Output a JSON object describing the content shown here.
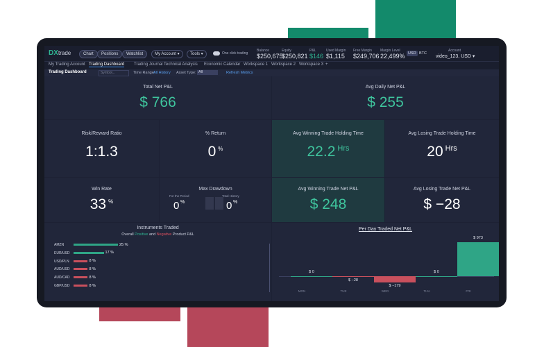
{
  "header": {
    "logo": "DX",
    "logo_suffix": "trade",
    "buttons": [
      "Chart",
      "Positions",
      "Watchlist"
    ],
    "menus": [
      "My Account ▾",
      "Tools ▾"
    ],
    "toggle": "One click trading",
    "stats": [
      {
        "label": "Balance",
        "value": "$250,675"
      },
      {
        "label": "Equity",
        "value": "$250,821"
      },
      {
        "label": "P&L",
        "value": "$146"
      },
      {
        "label": "Used Margin",
        "value": "$1,115"
      },
      {
        "label": "Free Margin",
        "value": "$249,706"
      },
      {
        "label": "Margin Level",
        "value": "22,499%"
      }
    ],
    "currencies": [
      "USD",
      "BTC"
    ],
    "account_label": "Account",
    "account_value": "video_123, USD ▾"
  },
  "tabs": [
    "My Trading Account",
    "Trading Dashboard",
    "Trading Journal",
    "Technical Analysis",
    "Economic Calendar",
    "Workspace 1",
    "Workspace 2",
    "Workspace 3",
    "+"
  ],
  "toolbar": {
    "title": "Trading Dashboard",
    "symbol_placeholder": "Symbol...",
    "time_range_label": "Time Range:",
    "time_range_value": "All History",
    "asset_type_label": "Asset Type:",
    "asset_type_value": "All",
    "refresh": "Refresh Metrics"
  },
  "cards": [
    {
      "title": "Total Net P&L",
      "value": "$ 766"
    },
    {
      "title": "Avg Daily Net P&L",
      "value": "$ 255"
    },
    {
      "title": "Risk/Reward Ratio",
      "value": "1:1.3"
    },
    {
      "title": "% Return",
      "value": "0",
      "unit": "%"
    },
    {
      "title": "Avg Winning Trade Holding Time",
      "value": "22.2",
      "unit": "Hrs"
    },
    {
      "title": "Avg Losing Trade Holding Time",
      "value": "20",
      "unit": "Hrs"
    },
    {
      "title": "Win Rate",
      "value": "33",
      "unit": "%"
    },
    {
      "title": "Max Drawdown",
      "items": [
        {
          "label": "For the Period",
          "value": "0",
          "unit": "%"
        },
        {
          "label": "Total History",
          "value": "0",
          "unit": "%"
        }
      ]
    },
    {
      "title": "Avg Winning Trade Net P&L",
      "value": "$ 248"
    },
    {
      "title": "Avg Losing Trade Net P&L",
      "value": "$ −28"
    }
  ],
  "instruments": {
    "title": "Instruments Traded",
    "subtitle_parts": [
      "Overall ",
      "Positive",
      " and ",
      "Negative",
      " Product P&L"
    ],
    "categories": [
      "AMZN",
      "EUR/USD",
      "USD/PLN",
      "AUD/USD",
      "AUD/CAD",
      "GBP/USD"
    ],
    "values": [
      25,
      17,
      8,
      8,
      8,
      8
    ],
    "value_labels": [
      "25 %",
      "17 %",
      "8 %",
      "8 %",
      "8 %",
      "8 %"
    ],
    "colors": [
      "#2fa586",
      "#2fa586",
      "#c9505d",
      "#c9505d",
      "#c9505d",
      "#c9505d"
    ]
  },
  "daily_chart": {
    "type": "bar",
    "title": "Per Day Traded Net P&L",
    "categories": [
      "MON",
      "TUE",
      "WED",
      "THU",
      "FRI"
    ],
    "values": [
      0,
      -28,
      -179,
      0,
      973
    ],
    "value_labels": [
      "$ 0",
      "$ −28",
      "$ −179",
      "$ 0",
      "$ 973"
    ],
    "positive_color": "#2fa586",
    "negative_color": "#c9505d"
  }
}
